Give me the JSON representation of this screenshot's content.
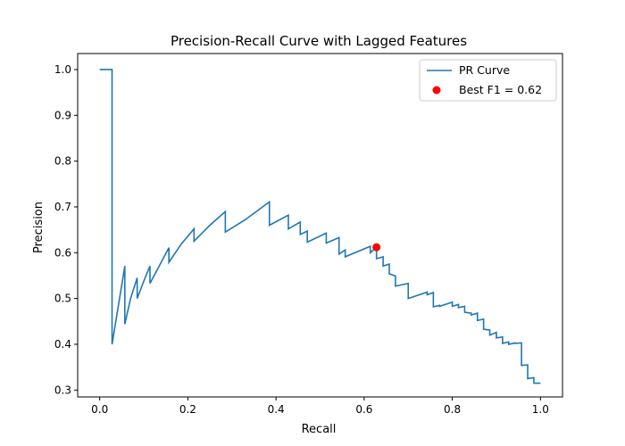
{
  "chart_data": {
    "type": "line",
    "title": "Precision-Recall Curve with Lagged Features",
    "xlabel": "Recall",
    "ylabel": "Precision",
    "xlim": [
      -0.05,
      1.05
    ],
    "ylim": [
      0.285,
      1.035
    ],
    "x_ticks": [
      0.0,
      0.2,
      0.4,
      0.6,
      0.8,
      1.0
    ],
    "x_tick_labels": [
      "0.0",
      "0.2",
      "0.4",
      "0.6",
      "0.8",
      "1.0"
    ],
    "y_ticks": [
      0.3,
      0.4,
      0.5,
      0.6,
      0.7,
      0.8,
      0.9,
      1.0
    ],
    "y_tick_labels": [
      "0.3",
      "0.4",
      "0.5",
      "0.6",
      "0.7",
      "0.8",
      "0.9",
      "1.0"
    ],
    "grid": false,
    "legend_position": "top-right",
    "series": [
      {
        "name": "PR Curve",
        "color": "#1f77b4",
        "x": [
          0.0,
          0.028,
          0.028,
          0.028,
          0.045,
          0.057,
          0.057,
          0.07,
          0.085,
          0.085,
          0.1,
          0.114,
          0.114,
          0.135,
          0.157,
          0.157,
          0.185,
          0.214,
          0.214,
          0.25,
          0.285,
          0.285,
          0.33,
          0.385,
          0.385,
          0.428,
          0.428,
          0.455,
          0.455,
          0.471,
          0.471,
          0.514,
          0.514,
          0.543,
          0.543,
          0.557,
          0.557,
          0.614,
          0.614,
          0.628,
          0.628,
          0.643,
          0.643,
          0.657,
          0.657,
          0.671,
          0.671,
          0.7,
          0.7,
          0.743,
          0.743,
          0.757,
          0.757,
          0.771,
          0.771,
          0.8,
          0.8,
          0.814,
          0.814,
          0.828,
          0.828,
          0.843,
          0.843,
          0.857,
          0.857,
          0.871,
          0.871,
          0.885,
          0.885,
          0.9,
          0.9,
          0.914,
          0.914,
          0.928,
          0.928,
          0.943,
          0.943,
          0.957,
          0.957,
          0.971,
          0.971,
          0.985,
          0.985,
          1.0
        ],
        "y": [
          1.0,
          1.0,
          0.4,
          0.4,
          0.5,
          0.571,
          0.444,
          0.5,
          0.545,
          0.5,
          0.538,
          0.571,
          0.533,
          0.571,
          0.611,
          0.579,
          0.619,
          0.652,
          0.625,
          0.66,
          0.69,
          0.645,
          0.672,
          0.711,
          0.66,
          0.682,
          0.652,
          0.667,
          0.64,
          0.647,
          0.623,
          0.643,
          0.621,
          0.633,
          0.597,
          0.606,
          0.591,
          0.614,
          0.6,
          0.612,
          0.587,
          0.591,
          0.571,
          0.575,
          0.554,
          0.549,
          0.527,
          0.533,
          0.5,
          0.514,
          0.508,
          0.513,
          0.482,
          0.485,
          0.483,
          0.492,
          0.483,
          0.487,
          0.48,
          0.483,
          0.47,
          0.468,
          0.464,
          0.468,
          0.452,
          0.455,
          0.433,
          0.431,
          0.42,
          0.426,
          0.414,
          0.416,
          0.402,
          0.405,
          0.4,
          0.403,
          0.402,
          0.403,
          0.354,
          0.355,
          0.325,
          0.327,
          0.315,
          0.315
        ]
      }
    ],
    "highlight_point": {
      "name": "Best F1 = 0.62",
      "color": "#ff0000",
      "x": 0.628,
      "y": 0.612
    }
  }
}
